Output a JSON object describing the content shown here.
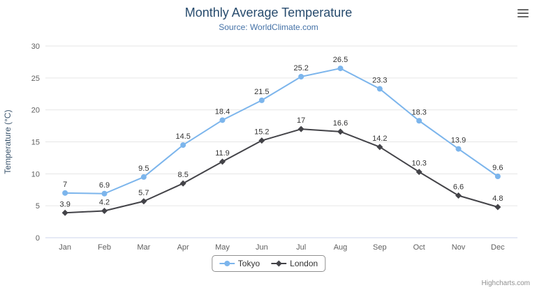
{
  "chart": {
    "credits": "Highcharts.com",
    "context_menu_icon": "hamburger-icon"
  },
  "chart_data": {
    "type": "line",
    "title": "Monthly Average Temperature",
    "subtitle": "Source: WorldClimate.com",
    "categories": [
      "Jan",
      "Feb",
      "Mar",
      "Apr",
      "May",
      "Jun",
      "Jul",
      "Aug",
      "Sep",
      "Oct",
      "Nov",
      "Dec"
    ],
    "series": [
      {
        "name": "Tokyo",
        "color": "#7cb5ec",
        "marker": "circle",
        "values": [
          7,
          6.9,
          9.5,
          14.5,
          18.4,
          21.5,
          25.2,
          26.5,
          23.3,
          18.3,
          13.9,
          9.6
        ]
      },
      {
        "name": "London",
        "color": "#434348",
        "marker": "diamond",
        "values": [
          3.9,
          4.2,
          5.7,
          8.5,
          11.9,
          15.2,
          17,
          16.6,
          14.2,
          10.3,
          6.6,
          4.8
        ]
      }
    ],
    "xlabel": "",
    "ylabel": "Temperature (°C)",
    "ylim": [
      0,
      30
    ],
    "yticks": [
      0,
      5,
      10,
      15,
      20,
      25,
      30
    ],
    "grid": true,
    "data_labels": true,
    "legend_position": "bottom"
  }
}
